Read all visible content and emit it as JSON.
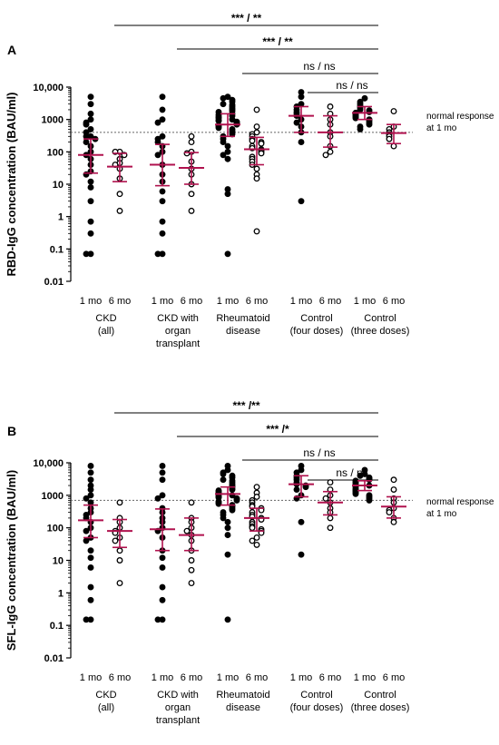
{
  "chart_data": [
    {
      "panel_label": "A",
      "type": "scatter",
      "ylabel": "RBD-IgG concentration (BAU/ml)",
      "yscale": "log",
      "ylim": [
        0.01,
        10000
      ],
      "yticks": [
        "0.01",
        "0.1",
        "1",
        "10",
        "100",
        "1000",
        "10,000"
      ],
      "reference_line": {
        "value": 400,
        "label_line1": "normal response",
        "label_line2": "at 1 mo"
      },
      "groups": [
        {
          "name_lines": [
            "CKD",
            "(all)"
          ],
          "timepoints": [
            "1 mo",
            "6 mo"
          ]
        },
        {
          "name_lines": [
            "CKD with",
            "organ",
            "transplant"
          ],
          "timepoints": [
            "1 mo",
            "6 mo"
          ]
        },
        {
          "name_lines": [
            "Rheumatoid",
            "disease"
          ],
          "timepoints": [
            "1 mo",
            "6 mo"
          ]
        },
        {
          "name_lines": [
            "Control",
            "(four doses)"
          ],
          "timepoints": [
            "1 mo",
            "6 mo"
          ]
        },
        {
          "name_lines": [
            "Control",
            "(three doses)"
          ],
          "timepoints": [
            "1 mo",
            "6 mo"
          ]
        }
      ],
      "significance": [
        {
          "text": "*** / **"
        },
        {
          "text": "*** / **"
        },
        {
          "text": "ns  /  ns"
        },
        {
          "text": "ns / ns"
        }
      ],
      "series": [
        {
          "group": 0,
          "time": "1 mo",
          "filled": true,
          "median": 80,
          "iqr": [
            22,
            250
          ],
          "values": [
            5000,
            3000,
            1500,
            1000,
            800,
            700,
            500,
            400,
            300,
            300,
            250,
            200,
            150,
            100,
            80,
            60,
            40,
            25,
            20,
            12,
            8,
            3,
            0.7,
            0.3,
            0.07,
            0.07
          ]
        },
        {
          "group": 0,
          "time": "6 mo",
          "filled": false,
          "median": 35,
          "iqr": [
            12,
            90
          ],
          "values": [
            100,
            100,
            80,
            60,
            45,
            40,
            30,
            15,
            5,
            1.5
          ]
        },
        {
          "group": 1,
          "time": "1 mo",
          "filled": true,
          "median": 40,
          "iqr": [
            9,
            170
          ],
          "values": [
            5000,
            2000,
            1000,
            800,
            300,
            250,
            200,
            150,
            100,
            80,
            40,
            20,
            12,
            6,
            3,
            0.7,
            0.3,
            0.07,
            0.07
          ]
        },
        {
          "group": 1,
          "time": "6 mo",
          "filled": false,
          "median": 32,
          "iqr": [
            10,
            95
          ],
          "values": [
            300,
            200,
            100,
            90,
            50,
            30,
            20,
            10,
            5,
            1.5
          ]
        },
        {
          "group": 2,
          "time": "1 mo",
          "filled": true,
          "median": 700,
          "iqr": [
            300,
            1500
          ],
          "values": [
            5000,
            4500,
            4000,
            3500,
            3000,
            2800,
            2500,
            2200,
            2000,
            1800,
            1700,
            1500,
            1400,
            1300,
            1200,
            1100,
            1000,
            950,
            900,
            850,
            800,
            750,
            700,
            650,
            600,
            550,
            500,
            450,
            400,
            350,
            300,
            250,
            200,
            150,
            100,
            80,
            60,
            7,
            5,
            0.07
          ]
        },
        {
          "group": 2,
          "time": "6 mo",
          "filled": false,
          "median": 120,
          "iqr": [
            40,
            280
          ],
          "values": [
            2000,
            600,
            400,
            350,
            300,
            250,
            220,
            200,
            180,
            150,
            130,
            120,
            110,
            100,
            90,
            70,
            60,
            50,
            40,
            30,
            20,
            15,
            0.35
          ]
        },
        {
          "group": 3,
          "time": "1 mo",
          "filled": true,
          "median": 1300,
          "iqr": [
            400,
            2500
          ],
          "values": [
            7000,
            5000,
            3000,
            2500,
            2000,
            1700,
            1500,
            1300,
            1000,
            800,
            600,
            400,
            200,
            3
          ]
        },
        {
          "group": 3,
          "time": "6 mo",
          "filled": false,
          "median": 400,
          "iqr": [
            140,
            1300
          ],
          "values": [
            2500,
            1500,
            1000,
            700,
            400,
            300,
            150,
            100,
            80
          ]
        },
        {
          "group": 4,
          "time": "1 mo",
          "filled": true,
          "median": 1600,
          "iqr": [
            1000,
            2500
          ],
          "values": [
            4500,
            3500,
            3000,
            2600,
            2300,
            2000,
            1900,
            1700,
            1600,
            1500,
            1400,
            1300,
            1200,
            1100,
            1000,
            900,
            800,
            700,
            600,
            500
          ]
        },
        {
          "group": 4,
          "time": "6 mo",
          "filled": false,
          "median": 380,
          "iqr": [
            180,
            700
          ],
          "values": [
            1800,
            600,
            500,
            400,
            350,
            300,
            250,
            150
          ]
        }
      ]
    },
    {
      "panel_label": "B",
      "type": "scatter",
      "ylabel": "SFL-IgG concentration (BAU/ml)",
      "yscale": "log",
      "ylim": [
        0.01,
        10000
      ],
      "yticks": [
        "0.01",
        "0.1",
        "1",
        "10",
        "100",
        "1000",
        "10,000"
      ],
      "reference_line": {
        "value": 700,
        "label_line1": "normal response",
        "label_line2": "at 1 mo"
      },
      "groups": [
        {
          "name_lines": [
            "CKD",
            "(all)"
          ],
          "timepoints": [
            "1 mo",
            "6 mo"
          ]
        },
        {
          "name_lines": [
            "CKD with",
            "organ",
            "transplant"
          ],
          "timepoints": [
            "1 mo",
            "6 mo"
          ]
        },
        {
          "name_lines": [
            "Rheumatoid",
            "disease"
          ],
          "timepoints": [
            "1 mo",
            "6 mo"
          ]
        },
        {
          "name_lines": [
            "Control",
            "(four doses)"
          ],
          "timepoints": [
            "1 mo",
            "6 mo"
          ]
        },
        {
          "name_lines": [
            "Control",
            "(three doses)"
          ],
          "timepoints": [
            "1 mo",
            "6 mo"
          ]
        }
      ],
      "significance": [
        {
          "text": "*** /**"
        },
        {
          "text": "*** /*"
        },
        {
          "text": "ns / ns"
        },
        {
          "text": "ns / ns"
        }
      ],
      "series": [
        {
          "group": 0,
          "time": "1 mo",
          "filled": true,
          "median": 170,
          "iqr": [
            50,
            500
          ],
          "values": [
            8000,
            5000,
            3000,
            2000,
            1500,
            1000,
            800,
            600,
            400,
            300,
            250,
            200,
            150,
            100,
            80,
            50,
            40,
            20,
            12,
            6,
            1.5,
            0.6,
            0.15,
            0.15
          ]
        },
        {
          "group": 0,
          "time": "6 mo",
          "filled": false,
          "median": 80,
          "iqr": [
            25,
            180
          ],
          "values": [
            600,
            200,
            150,
            100,
            80,
            70,
            50,
            40,
            20,
            10,
            2
          ]
        },
        {
          "group": 1,
          "time": "1 mo",
          "filled": true,
          "median": 90,
          "iqr": [
            20,
            380
          ],
          "values": [
            8000,
            5000,
            3000,
            1000,
            800,
            400,
            300,
            200,
            150,
            100,
            80,
            50,
            20,
            12,
            6,
            1.5,
            0.6,
            0.15,
            0.15
          ]
        },
        {
          "group": 1,
          "time": "6 mo",
          "filled": false,
          "median": 60,
          "iqr": [
            20,
            200
          ],
          "values": [
            600,
            200,
            150,
            100,
            80,
            60,
            40,
            20,
            10,
            5,
            2
          ]
        },
        {
          "group": 2,
          "time": "1 mo",
          "filled": true,
          "median": 1100,
          "iqr": [
            500,
            1800
          ],
          "values": [
            8000,
            6000,
            5000,
            4500,
            4000,
            3500,
            3000,
            2800,
            2500,
            2200,
            2000,
            1800,
            1600,
            1500,
            1400,
            1300,
            1200,
            1100,
            1000,
            950,
            900,
            850,
            800,
            750,
            700,
            650,
            600,
            550,
            500,
            450,
            400,
            350,
            300,
            250,
            200,
            150,
            100,
            60,
            15,
            0.15
          ]
        },
        {
          "group": 2,
          "time": "6 mo",
          "filled": false,
          "median": 200,
          "iqr": [
            80,
            400
          ],
          "values": [
            1800,
            1200,
            900,
            700,
            600,
            500,
            450,
            400,
            350,
            300,
            250,
            220,
            200,
            180,
            150,
            130,
            110,
            100,
            90,
            80,
            70,
            50,
            40,
            30
          ]
        },
        {
          "group": 3,
          "time": "1 mo",
          "filled": true,
          "median": 2200,
          "iqr": [
            900,
            4000
          ],
          "values": [
            8000,
            6000,
            5000,
            4000,
            3500,
            3000,
            2500,
            2200,
            2000,
            1800,
            1500,
            1000,
            800,
            150,
            15
          ]
        },
        {
          "group": 3,
          "time": "6 mo",
          "filled": false,
          "median": 600,
          "iqr": [
            250,
            1300
          ],
          "values": [
            2500,
            1500,
            1000,
            800,
            600,
            400,
            300,
            200,
            100
          ]
        },
        {
          "group": 4,
          "time": "1 mo",
          "filled": true,
          "median": 2000,
          "iqr": [
            1400,
            2800
          ],
          "values": [
            6000,
            4500,
            4000,
            3500,
            3200,
            3000,
            2800,
            2600,
            2400,
            2200,
            2000,
            1900,
            1800,
            1600,
            1500,
            1400,
            1300,
            1200,
            1100,
            1000,
            900,
            800,
            700
          ]
        },
        {
          "group": 4,
          "time": "6 mo",
          "filled": false,
          "median": 450,
          "iqr": [
            200,
            900
          ],
          "values": [
            3000,
            1500,
            800,
            600,
            400,
            350,
            300,
            200,
            150
          ]
        }
      ]
    }
  ]
}
